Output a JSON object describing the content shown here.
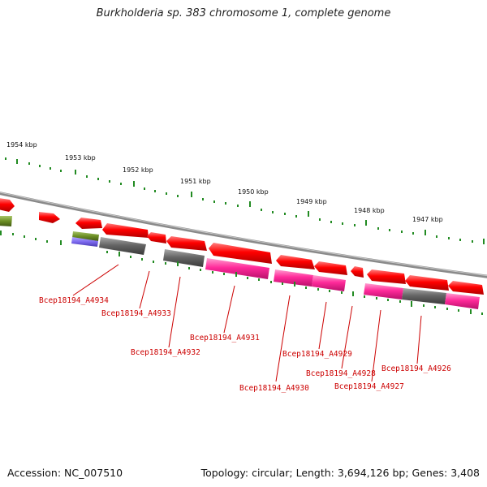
{
  "title": "Burkholderia sp. 383 chromosome 1, complete genome",
  "footer": {
    "accession": "Accession: NC_007510",
    "summary": "Topology: circular; Length: 3,694,126 bp; Genes: 3,408"
  },
  "scale_labels": [
    "1954 kbp",
    "1953 kbp",
    "1952 kbp",
    "1951 kbp",
    "1950 kbp",
    "1949 kbp",
    "1948 kbp",
    "1947 kbp"
  ],
  "gene_labels": [
    "Bcep18194_A4934",
    "Bcep18194_A4933",
    "Bcep18194_A4932",
    "Bcep18194_A4931",
    "Bcep18194_A4930",
    "Bcep18194_A4929",
    "Bcep18194_A4928",
    "Bcep18194_A4927",
    "Bcep18194_A4926"
  ],
  "colors": {
    "gene_cds": "#ff0000",
    "gene_pink": "#ff2a9a",
    "gene_grey": "#666666",
    "gene_olive": "#6b8e23",
    "gene_purple": "#7b68ee",
    "backbone": "#888888",
    "ticks": "#228b22",
    "label": "#cc0000"
  }
}
